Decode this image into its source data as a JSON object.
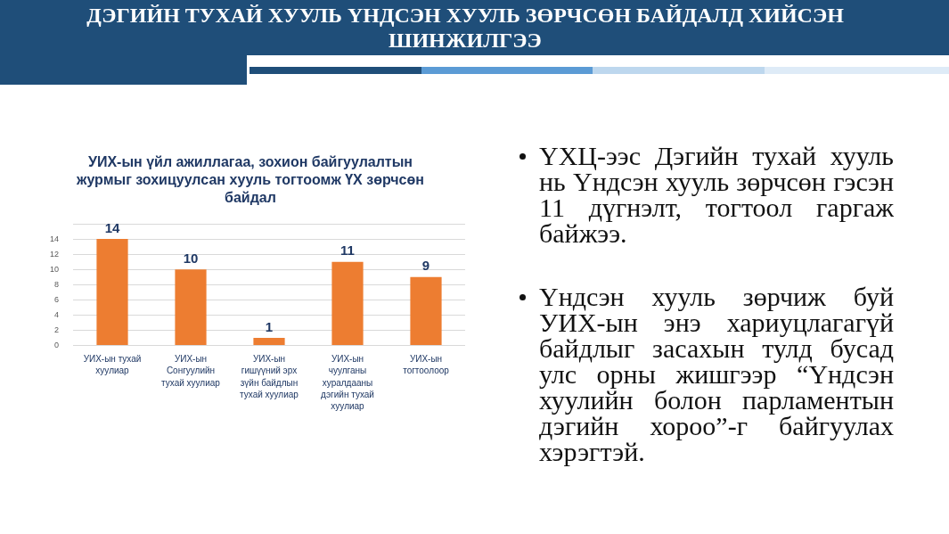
{
  "chart_data": {
    "type": "bar",
    "title": "ДЭГИЙН ТУХАЙ ХУУЛЬ ҮНДСЭН ХУУЛЬ ЗӨРЧСӨН БАЙДАЛД ХИЙСЭН ШИНЖИЛГЭЭ",
    "subtitle": "УИХ-ын үйл ажиллагаа, зохион байгуулалтын журмыг зохицуулсан хууль тогтоомж ҮХ зөрчсөн байдал",
    "categories": [
      "УИХ-ын тухай хуулиар",
      "УИХ-ын Сонгуулийн тухай хуулиар",
      "УИХ-ын гишүүний эрх зүйн байдлын тухай хуулиар",
      "УИХ-ын чуулганы хуралдааны дэгийн тухай хуулиар",
      "УИХ-ын тогтоолоор"
    ],
    "values": [
      14,
      10,
      1,
      11,
      9
    ],
    "color": "#ed7d31",
    "ylim": [
      0,
      16
    ],
    "yticks": [
      0,
      2,
      4,
      6,
      8,
      10,
      12,
      14,
      {
        "value": 16,
        "label": null
      }
    ],
    "grid": "y",
    "data_labels": true,
    "annotations": [
      "ҮХЦ-ээс Дэгийн тухай хууль нь Үндсэн хууль зөрчсөн гэсэн 11 дүгнэлт, тогтоол гаргаж байжээ.",
      "Үндсэн хууль зөрчиж буй УИХ-ын энэ хариуцлагагүй байдлыг засахын тулд бусад улс орны жишгээр “Үндсэн хуулийн болон парламентын дэгийн хороо”-г байгуулах хэрэгтэй."
    ]
  }
}
